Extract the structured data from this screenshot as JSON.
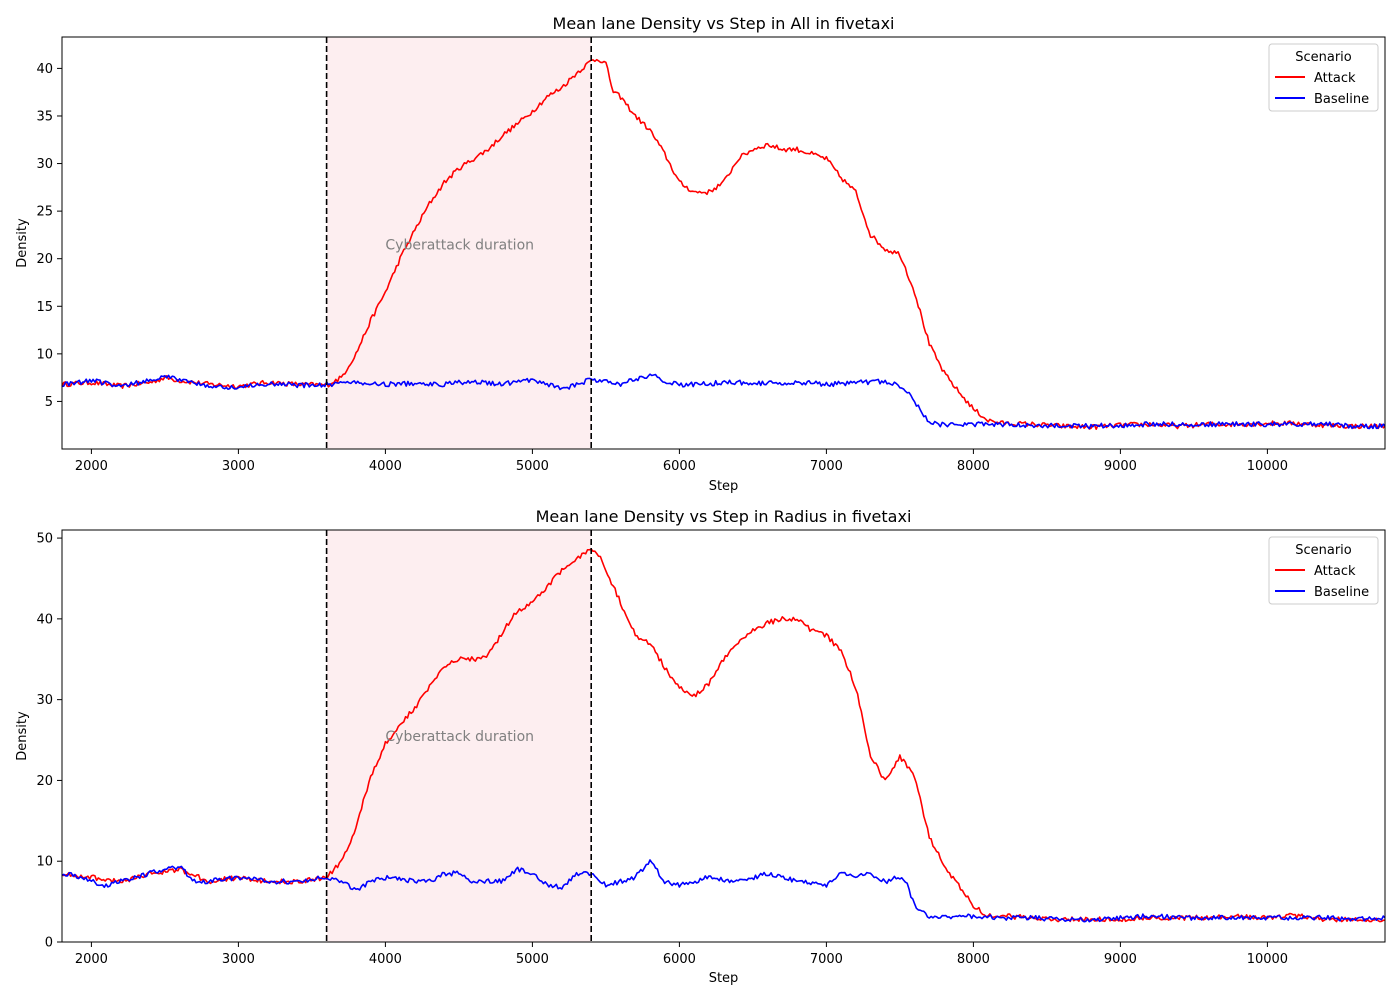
{
  "chart_data": [
    {
      "type": "line",
      "title": "Mean lane Density vs Step in All in fivetaxi",
      "xlabel": "Step",
      "ylabel": "Density",
      "xlim": [
        1800,
        10800
      ],
      "ylim": [
        0,
        43.3
      ],
      "xticks": [
        2000,
        3000,
        4000,
        5000,
        6000,
        7000,
        8000,
        9000,
        10000
      ],
      "yticks": [
        5,
        10,
        15,
        20,
        25,
        30,
        35,
        40
      ],
      "grid": false,
      "legend": {
        "title": "Scenario",
        "placement": "upper right",
        "entries": [
          "Attack",
          "Baseline"
        ]
      },
      "vlines": [
        3600,
        5400
      ],
      "shaded_region": {
        "x": [
          3600,
          5400
        ],
        "color": "#fdeef0"
      },
      "annotation": {
        "text": "Cyberattack duration",
        "x": 4000,
        "y": 21.5
      },
      "series": [
        {
          "name": "Attack",
          "color": "#ff0000",
          "x": [
            1800,
            2000,
            2200,
            2400,
            2500,
            2600,
            2800,
            3000,
            3200,
            3400,
            3600,
            3700,
            3800,
            3900,
            4000,
            4100,
            4200,
            4300,
            4400,
            4500,
            4600,
            4700,
            4800,
            4900,
            5000,
            5100,
            5200,
            5300,
            5400,
            5450,
            5500,
            5550,
            5600,
            5700,
            5800,
            5900,
            6000,
            6100,
            6200,
            6300,
            6400,
            6500,
            6600,
            6700,
            6800,
            6900,
            7000,
            7100,
            7200,
            7300,
            7400,
            7500,
            7600,
            7700,
            7800,
            7900,
            8000,
            8100,
            8200,
            8400,
            8600,
            8800,
            9000,
            9200,
            9400,
            9600,
            9800,
            10000,
            10200,
            10400,
            10600,
            10800
          ],
          "y": [
            6.8,
            7.0,
            6.6,
            7.0,
            7.5,
            7.2,
            6.8,
            6.6,
            7.0,
            6.8,
            6.7,
            7.5,
            10.0,
            13.5,
            16.5,
            20.0,
            23.0,
            25.8,
            28.0,
            29.5,
            30.5,
            31.5,
            33.0,
            34.2,
            35.5,
            37.0,
            38.0,
            39.5,
            40.8,
            41.0,
            40.5,
            37.5,
            37.0,
            35.0,
            33.5,
            31.0,
            28.0,
            27.0,
            27.0,
            28.0,
            30.5,
            31.5,
            32.0,
            31.5,
            31.5,
            31.0,
            30.5,
            28.5,
            27.0,
            22.5,
            21.0,
            20.5,
            16.5,
            11.0,
            8.0,
            6.0,
            4.2,
            3.0,
            2.7,
            2.6,
            2.4,
            2.3,
            2.5,
            2.6,
            2.4,
            2.6,
            2.6,
            2.7,
            2.7,
            2.5,
            2.4,
            2.4
          ]
        },
        {
          "name": "Baseline",
          "color": "#0000ff",
          "x": [
            1800,
            2000,
            2200,
            2400,
            2500,
            2600,
            2800,
            3000,
            3200,
            3400,
            3600,
            3800,
            4000,
            4200,
            4400,
            4500,
            4600,
            4800,
            5000,
            5100,
            5200,
            5300,
            5400,
            5600,
            5800,
            5900,
            6000,
            6200,
            6400,
            6600,
            6800,
            7000,
            7200,
            7400,
            7500,
            7550,
            7600,
            7700,
            7800,
            8000,
            8200,
            8400,
            8600,
            8800,
            9000,
            9200,
            9400,
            9600,
            9800,
            10000,
            10200,
            10400,
            10600,
            10800
          ],
          "y": [
            6.8,
            7.2,
            6.6,
            7.2,
            7.6,
            7.3,
            6.6,
            6.5,
            6.9,
            6.7,
            6.8,
            7.0,
            6.8,
            6.9,
            6.8,
            7.0,
            7.1,
            6.8,
            7.3,
            6.9,
            6.2,
            6.8,
            7.3,
            6.8,
            7.8,
            7.2,
            6.7,
            6.9,
            7.0,
            6.9,
            7.0,
            6.8,
            7.0,
            7.1,
            6.6,
            6.0,
            5.0,
            2.8,
            2.5,
            2.6,
            2.6,
            2.5,
            2.4,
            2.4,
            2.5,
            2.6,
            2.6,
            2.6,
            2.6,
            2.6,
            2.6,
            2.6,
            2.4,
            2.4
          ]
        }
      ]
    },
    {
      "type": "line",
      "title": "Mean lane Density vs Step in Radius in fivetaxi",
      "xlabel": "Step",
      "ylabel": "Density",
      "xlim": [
        1800,
        10800
      ],
      "ylim": [
        0,
        51
      ],
      "xticks": [
        2000,
        3000,
        4000,
        5000,
        6000,
        7000,
        8000,
        9000,
        10000
      ],
      "yticks": [
        0,
        10,
        20,
        30,
        40,
        50
      ],
      "grid": false,
      "legend": {
        "title": "Scenario",
        "placement": "upper right",
        "entries": [
          "Attack",
          "Baseline"
        ]
      },
      "vlines": [
        3600,
        5400
      ],
      "shaded_region": {
        "x": [
          3600,
          5400
        ],
        "color": "#fdeef0"
      },
      "annotation": {
        "text": "Cyberattack duration",
        "x": 4000,
        "y": 25.5
      },
      "series": [
        {
          "name": "Attack",
          "color": "#ff0000",
          "x": [
            1800,
            2000,
            2200,
            2400,
            2600,
            2800,
            3000,
            3200,
            3400,
            3600,
            3700,
            3800,
            3850,
            3900,
            4000,
            4100,
            4200,
            4300,
            4400,
            4500,
            4600,
            4700,
            4800,
            4900,
            5000,
            5100,
            5200,
            5300,
            5400,
            5450,
            5500,
            5600,
            5700,
            5800,
            5900,
            6000,
            6100,
            6200,
            6300,
            6400,
            6500,
            6600,
            6700,
            6800,
            6900,
            7000,
            7100,
            7200,
            7300,
            7400,
            7450,
            7500,
            7600,
            7700,
            7800,
            7900,
            8000,
            8100,
            8200,
            8400,
            8600,
            8800,
            9000,
            9200,
            9400,
            9600,
            9800,
            10000,
            10200,
            10400,
            10600,
            10800
          ],
          "y": [
            8.5,
            8.0,
            7.5,
            8.5,
            9.0,
            7.5,
            8.0,
            7.5,
            7.5,
            8.0,
            10.0,
            14.0,
            17.5,
            20.5,
            24.5,
            27.0,
            29.0,
            31.5,
            34.0,
            35.0,
            35.0,
            35.5,
            38.5,
            41.0,
            42.0,
            44.0,
            46.0,
            47.5,
            48.5,
            48.0,
            46.0,
            42.0,
            38.0,
            37.0,
            34.0,
            31.5,
            30.5,
            32.0,
            35.0,
            37.0,
            38.5,
            39.5,
            40.0,
            40.0,
            38.5,
            38.0,
            36.0,
            31.5,
            23.0,
            20.0,
            21.5,
            23.0,
            20.5,
            13.0,
            9.5,
            7.0,
            4.5,
            3.2,
            3.2,
            3.0,
            2.8,
            2.8,
            2.8,
            3.0,
            3.0,
            3.0,
            3.2,
            3.0,
            3.3,
            2.8,
            2.8,
            2.7
          ]
        },
        {
          "name": "Baseline",
          "color": "#0000ff",
          "x": [
            1800,
            1900,
            2000,
            2100,
            2200,
            2400,
            2500,
            2600,
            2700,
            2800,
            3000,
            3200,
            3400,
            3600,
            3700,
            3800,
            3900,
            4000,
            4200,
            4300,
            4400,
            4500,
            4600,
            4700,
            4800,
            4900,
            5000,
            5100,
            5200,
            5300,
            5400,
            5500,
            5600,
            5700,
            5800,
            5900,
            6000,
            6200,
            6400,
            6600,
            6800,
            7000,
            7100,
            7200,
            7300,
            7400,
            7500,
            7550,
            7600,
            7700,
            7800,
            8000,
            8200,
            8400,
            8600,
            8800,
            9000,
            9200,
            9400,
            9600,
            9800,
            10000,
            10200,
            10400,
            10600,
            10800
          ],
          "y": [
            8.5,
            8.2,
            7.5,
            7.0,
            7.5,
            8.5,
            9.0,
            9.3,
            7.5,
            7.5,
            8.0,
            7.5,
            7.5,
            8.0,
            7.5,
            6.5,
            7.5,
            8.0,
            7.5,
            7.5,
            8.5,
            8.5,
            7.5,
            7.5,
            7.5,
            9.0,
            8.5,
            7.0,
            6.8,
            8.5,
            8.5,
            7.0,
            7.5,
            8.0,
            10.0,
            7.5,
            7.0,
            8.0,
            7.5,
            8.5,
            7.5,
            7.0,
            8.5,
            8.0,
            8.5,
            7.5,
            8.0,
            7.0,
            4.5,
            3.0,
            3.0,
            3.2,
            3.0,
            3.0,
            2.8,
            2.8,
            3.0,
            3.2,
            3.0,
            3.0,
            3.0,
            3.0,
            3.0,
            3.0,
            2.8,
            3.0
          ]
        }
      ]
    }
  ]
}
